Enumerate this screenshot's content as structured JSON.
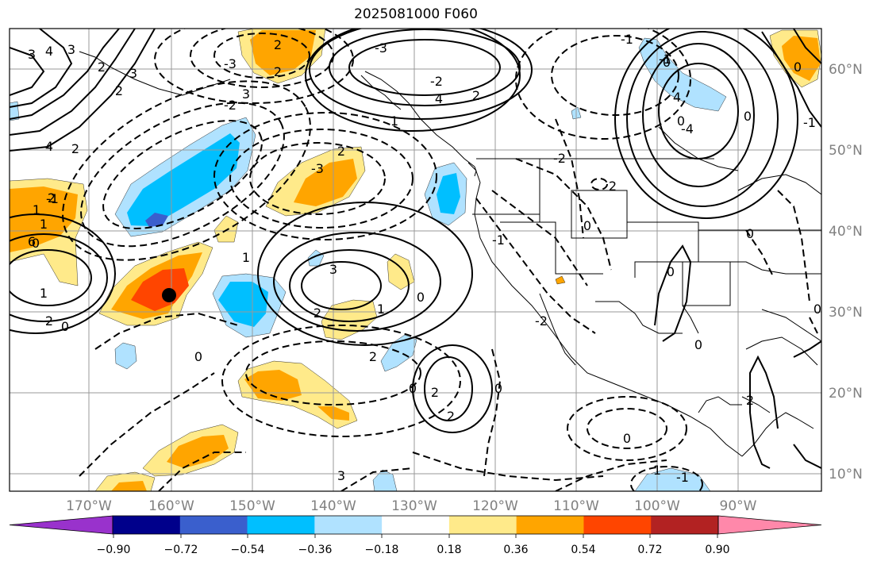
{
  "title": "2025081000 F060",
  "lon_labels": [
    "170°W",
    "160°W",
    "150°W",
    "140°W",
    "130°W",
    "120°W",
    "110°W",
    "100°W",
    "90°W"
  ],
  "lat_labels": [
    "60°N",
    "50°N",
    "40°N",
    "30°N",
    "20°N",
    "10°N"
  ],
  "colorbar": {
    "tick_labels": [
      "−0.90",
      "−0.72",
      "−0.54",
      "−0.36",
      "−0.18",
      "0.18",
      "0.36",
      "0.54",
      "0.72",
      "0.90"
    ],
    "colors": [
      "#9932cc",
      "#00008b",
      "#3a5fcd",
      "#00bfff",
      "#b0e2ff",
      "#ffffff",
      "#ffea8a",
      "#ffa500",
      "#ff4500",
      "#b22222",
      "#ff88aa"
    ]
  },
  "contour_labels": [
    "4",
    "3",
    "2",
    "3",
    "2",
    "4",
    "2",
    "1",
    "2",
    "1",
    "0",
    "3",
    "6",
    "-3",
    "2",
    "-2",
    "3",
    "2",
    "-3",
    "2",
    "1",
    "-1",
    "2",
    "0",
    "-3",
    "-2",
    "4",
    "2",
    "1",
    "3",
    "2",
    "1",
    "0",
    "1",
    "3",
    "0",
    "-1",
    "2",
    "0",
    "2",
    "0",
    "2",
    "-2",
    "2",
    "-2",
    "0",
    "0",
    "0",
    "0",
    "2",
    "1",
    "0",
    "-1",
    "0",
    "0",
    "-1",
    "-1",
    "4",
    "0",
    "-4",
    "0",
    "0",
    "-1"
  ],
  "fill_colors": {
    "light_blue": "#b0e2ff",
    "mid_blue": "#00bfff",
    "blue": "#3a5fcd",
    "light_yellow": "#ffea8a",
    "orange": "#ffa500",
    "red_orange": "#ff4500"
  },
  "marker": "storm-position-marker"
}
